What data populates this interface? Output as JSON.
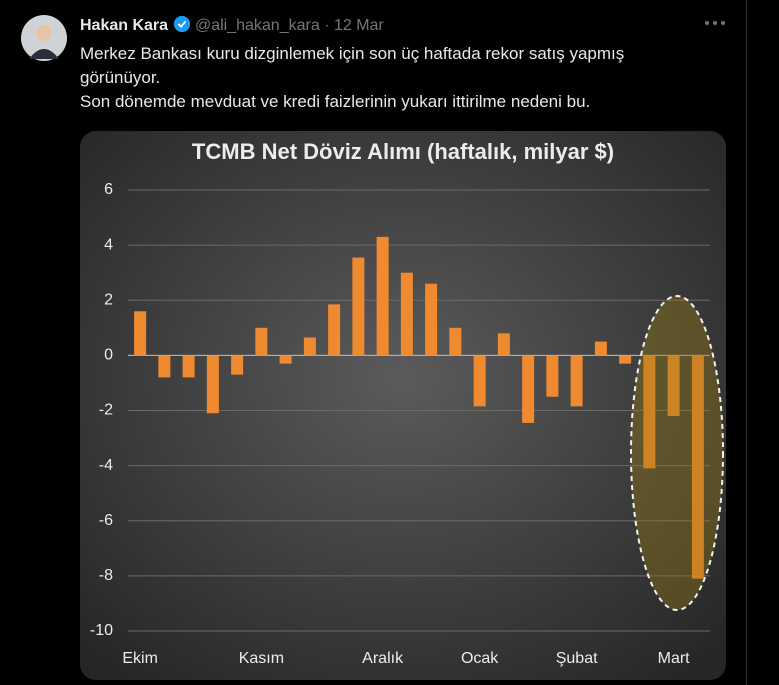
{
  "tweet": {
    "author": "Hakan Kara",
    "handle": "@ali_hakan_kara",
    "separator": "·",
    "date": "12 Mar",
    "paragraphs": [
      "Merkez Bankası kuru dizginlemek için son üç haftada rekor satış yapmış görünüyor.",
      "Son dönemde mevduat ve kredi faizlerinin yukarı ittirilme nedeni bu."
    ]
  },
  "chart_data": {
    "type": "bar",
    "title": "TCMB Net Döviz Alımı (haftalık, milyar $)",
    "categories": [
      "Ekim",
      null,
      null,
      null,
      null,
      "Kasım",
      null,
      null,
      null,
      null,
      "Aralık",
      null,
      null,
      null,
      "Ocak",
      null,
      null,
      null,
      "Şubat",
      null,
      null,
      null,
      "Mart",
      null
    ],
    "values": [
      1.6,
      -0.8,
      -0.8,
      -2.1,
      -0.7,
      1.0,
      -0.3,
      0.65,
      1.85,
      3.55,
      4.3,
      3.0,
      2.6,
      1.0,
      -1.85,
      0.8,
      -2.45,
      -1.5,
      -1.85,
      0.5,
      -0.3,
      -4.1,
      -2.2,
      -8.1
    ],
    "color": "#f08a30",
    "ylim": [
      -10,
      6
    ],
    "yticks": [
      -10,
      -8,
      -6,
      -4,
      -2,
      0,
      2,
      4,
      6
    ],
    "grid": true
  }
}
